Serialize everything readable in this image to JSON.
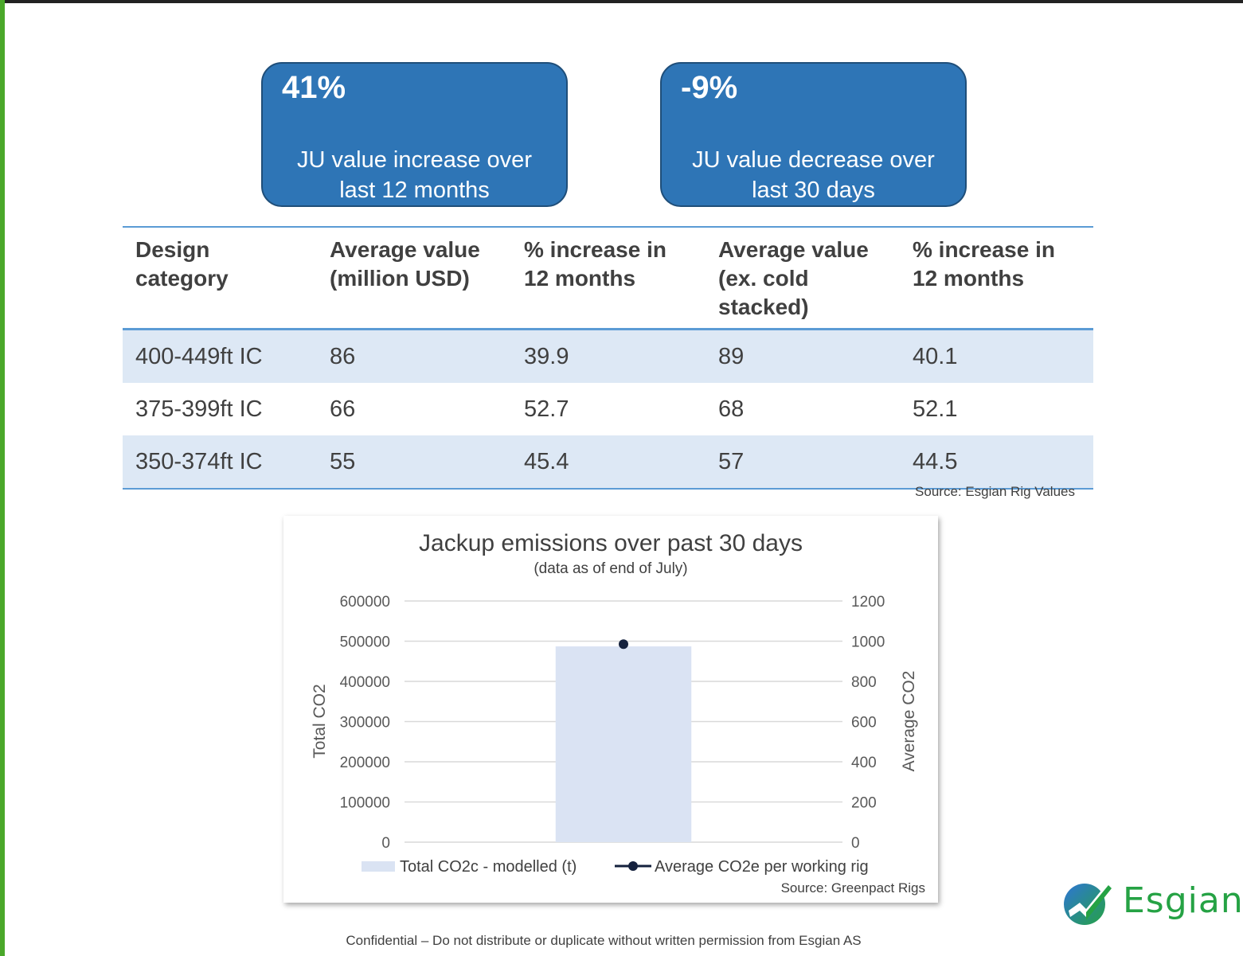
{
  "kpis": [
    {
      "value": "41%",
      "desc_line1": "JU value increase over",
      "desc_line2": "last 12 months"
    },
    {
      "value": "-9%",
      "desc_line1": "JU value decrease over",
      "desc_line2": "last 30 days"
    }
  ],
  "table": {
    "headers": [
      [
        "Design",
        "category"
      ],
      [
        "Average value",
        "(million USD)"
      ],
      [
        "% increase in",
        "12 months"
      ],
      [
        "Average value",
        "(ex. cold",
        "stacked)"
      ],
      [
        "% increase in",
        "12 months"
      ]
    ],
    "rows": [
      [
        "400-449ft IC",
        "86",
        "39.9",
        "89",
        "40.1"
      ],
      [
        "375-399ft IC",
        "66",
        "52.7",
        "68",
        "52.1"
      ],
      [
        "350-374ft IC",
        "55",
        "45.4",
        "57",
        "44.5"
      ]
    ],
    "source": "Source: Esgian Rig Values"
  },
  "chart_data": {
    "type": "bar",
    "title": "Jackup emissions over past 30 days",
    "subtitle": "(data as of end of July)",
    "categories": [
      ""
    ],
    "series": [
      {
        "name": "Total CO2c - modelled (t)",
        "type": "bar",
        "axis": "left",
        "values": [
          487000
        ],
        "color": "#dae3f3"
      },
      {
        "name": "Average CO2e per working rig",
        "type": "line",
        "axis": "right",
        "values": [
          985
        ],
        "color": "#14213d"
      }
    ],
    "ylabel": "Total CO2",
    "y2label": "Average CO2",
    "ylim": [
      0,
      600000
    ],
    "y2lim": [
      0,
      1200
    ],
    "yticks": [
      "0",
      "100000",
      "200000",
      "300000",
      "400000",
      "500000",
      "600000"
    ],
    "y2ticks": [
      "0",
      "200",
      "400",
      "600",
      "800",
      "1000",
      "1200"
    ],
    "grid": true,
    "legend": "bottom",
    "source": "Source: Greenpact Rigs"
  },
  "footer": "Confidential – Do not distribute or duplicate without written permission from Esgian AS",
  "logo": {
    "text": "Esgian",
    "icon": "esgian-check-icon"
  },
  "colors": {
    "kpi_fill": "#2e75b6",
    "table_rule": "#5b9bd5",
    "row_shade": "#dde8f5",
    "brand": "#25a244"
  }
}
